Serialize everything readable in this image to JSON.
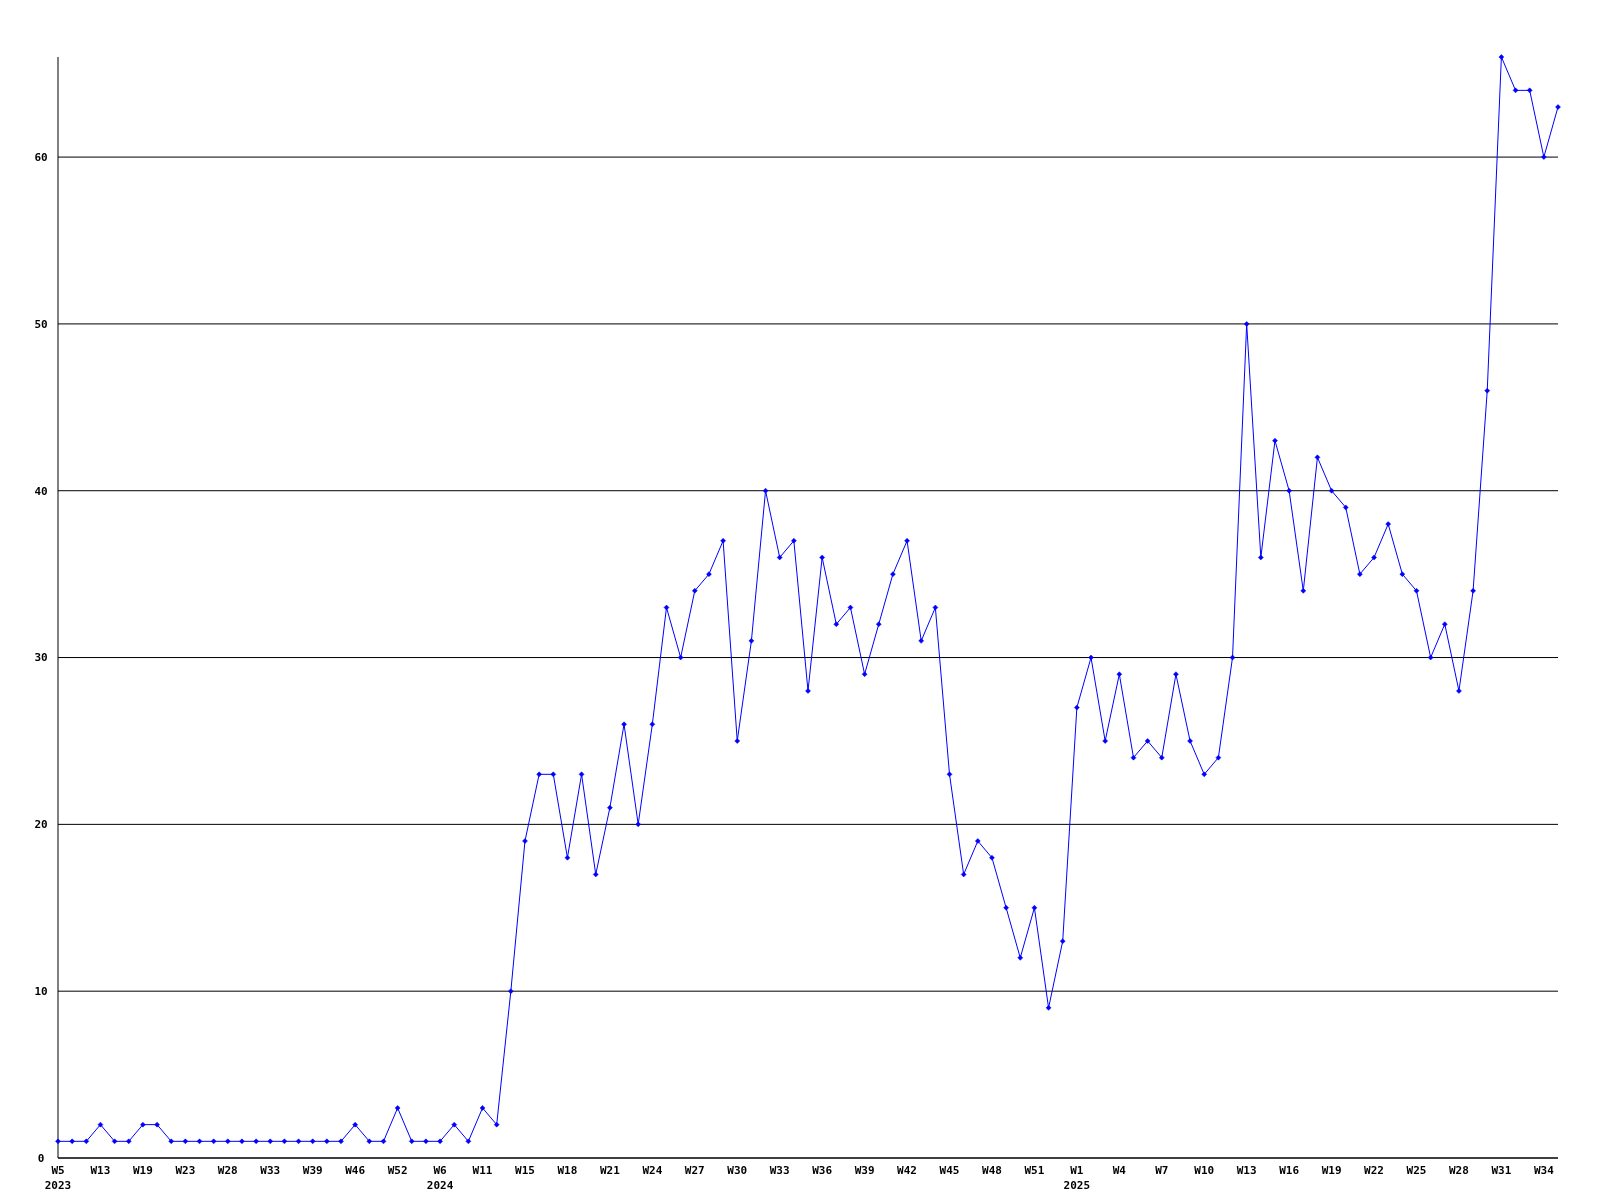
{
  "chart_data": {
    "type": "line",
    "categories": [
      "W5\n2023",
      null,
      null,
      "W13",
      null,
      null,
      "W19",
      null,
      null,
      "W23",
      null,
      null,
      "W28",
      null,
      null,
      "W33",
      null,
      null,
      "W39",
      null,
      null,
      "W46",
      null,
      null,
      "W52",
      null,
      null,
      "W6\n2024",
      null,
      null,
      "W11",
      null,
      null,
      "W15",
      null,
      null,
      "W18",
      null,
      null,
      "W21",
      null,
      null,
      "W24",
      null,
      null,
      "W27",
      null,
      null,
      "W30",
      null,
      null,
      "W33",
      null,
      null,
      "W36",
      null,
      null,
      "W39",
      null,
      null,
      "W42",
      null,
      null,
      "W45",
      null,
      null,
      "W48",
      null,
      null,
      "W51",
      null,
      null,
      "W1\n2025",
      null,
      null,
      "W4",
      null,
      null,
      "W7",
      null,
      null,
      "W10",
      null,
      null,
      "W13",
      null,
      null,
      "W16",
      null,
      null,
      "W19",
      null,
      null,
      "W22",
      null,
      null,
      "W25",
      null,
      null,
      "W28",
      null,
      null,
      "W31",
      null,
      null,
      "W34",
      null
    ],
    "series": [
      {
        "color": "#0000ff",
        "values": [
          1,
          1,
          1,
          2,
          1,
          1,
          2,
          2,
          1,
          1,
          1,
          1,
          1,
          1,
          1,
          1,
          1,
          1,
          1,
          1,
          1,
          2,
          1,
          1,
          3,
          1,
          1,
          1,
          2,
          1,
          3,
          2,
          10,
          19,
          23,
          23,
          18,
          23,
          17,
          21,
          26,
          20,
          26,
          33,
          30,
          34,
          35,
          37,
          25,
          31,
          40,
          36,
          37,
          28,
          36,
          32,
          33,
          29,
          32,
          35,
          37,
          31,
          33,
          23,
          17,
          19,
          18,
          15,
          12,
          15,
          9,
          13,
          27,
          30,
          25,
          29,
          24,
          25,
          24,
          29,
          25,
          23,
          24,
          30,
          50,
          36,
          43,
          40,
          34,
          42,
          40,
          39,
          35,
          36,
          38,
          35,
          34,
          30,
          32,
          28,
          34,
          46,
          66,
          64,
          64,
          60,
          63
        ]
      }
    ],
    "ylim": [
      0,
      66
    ],
    "yticks": [
      0,
      10,
      20,
      30,
      40,
      50,
      60
    ],
    "grid": "y",
    "marker": "diamond",
    "line_style": "solid"
  }
}
